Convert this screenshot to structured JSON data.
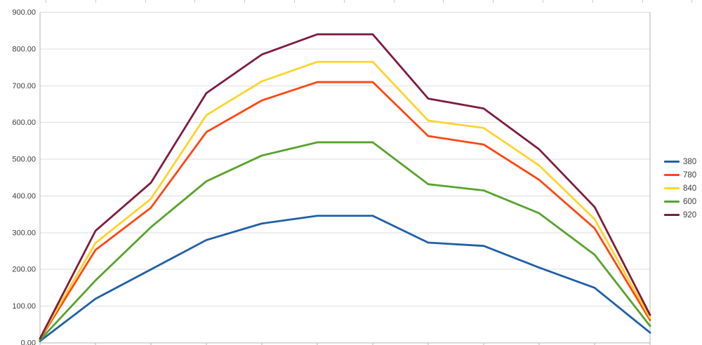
{
  "window": {
    "background": "#ffffff",
    "top_edge_ticks": {
      "start": 65,
      "spacing": 70.8,
      "count": 14,
      "color": "#c9c9c9"
    }
  },
  "chart_data": {
    "type": "line",
    "title": "",
    "xlabel": "",
    "ylabel": "",
    "x_count": 12,
    "x_tick_labels_visible": false,
    "grid": true,
    "legend_position": "right",
    "ylim": [
      0,
      900
    ],
    "y_tick_step": 100,
    "y_tick_labels": [
      "900.00",
      "800.00",
      "700.00",
      "600.00",
      "500.00",
      "400.00",
      "300.00",
      "200.00",
      "100.00",
      "0.00"
    ],
    "colors": {
      "gridline": "#dcdcdc",
      "axis": "#b3b3b3",
      "tick": "#b3b3b3",
      "label_text": "#3c3c3c"
    },
    "series": [
      {
        "name": "380",
        "color": "#1F5FA6",
        "values": [
          5,
          120,
          200,
          280,
          325,
          346,
          346,
          273,
          264,
          205,
          150,
          28
        ]
      },
      {
        "name": "780",
        "color": "#FF4612",
        "values": [
          10,
          253,
          368,
          574,
          660,
          710,
          710,
          563,
          540,
          444,
          312,
          62
        ]
      },
      {
        "name": "840",
        "color": "#FFD32B",
        "values": [
          12,
          272,
          392,
          620,
          712,
          765,
          765,
          605,
          585,
          483,
          337,
          68
        ]
      },
      {
        "name": "600",
        "color": "#57A32B",
        "values": [
          8,
          170,
          315,
          440,
          510,
          546,
          546,
          432,
          415,
          353,
          240,
          46
        ]
      },
      {
        "name": "920",
        "color": "#7E1C3C",
        "values": [
          12,
          305,
          436,
          680,
          785,
          840,
          840,
          665,
          638,
          527,
          370,
          76
        ]
      }
    ]
  }
}
